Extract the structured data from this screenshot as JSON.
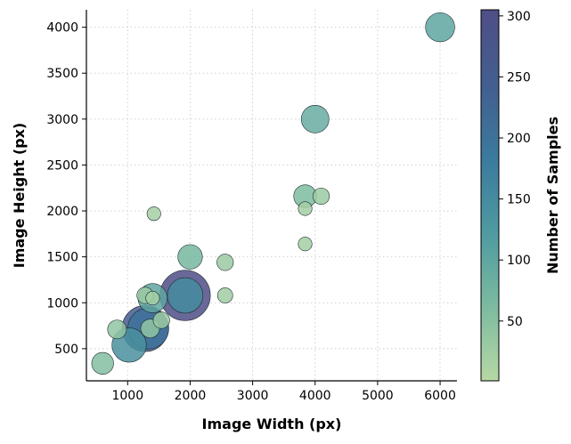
{
  "chart_data": {
    "type": "scatter",
    "title": "",
    "xlabel": "Image Width (px)",
    "ylabel": "Image Height (px)",
    "xlim": [
      340,
      6270
    ],
    "ylim": [
      150,
      4190
    ],
    "xticks": [
      1000,
      2000,
      3000,
      4000,
      5000,
      6000
    ],
    "yticks": [
      500,
      1000,
      1500,
      2000,
      2500,
      3000,
      3500,
      4000
    ],
    "grid": true,
    "colorbar": {
      "label": "Number of Samples",
      "range": [
        1,
        305
      ],
      "ticks": [
        50,
        100,
        150,
        200,
        250,
        300
      ],
      "colormap": [
        "#b7d8a5",
        "#7cbba0",
        "#4e9aa0",
        "#3b7a9e",
        "#435e90",
        "#4f4e86"
      ]
    },
    "points": [
      {
        "x": 6000,
        "y": 4000,
        "count": 100
      },
      {
        "x": 4000,
        "y": 3000,
        "count": 90
      },
      {
        "x": 3840,
        "y": 2160,
        "count": 60
      },
      {
        "x": 4096,
        "y": 2160,
        "count": 30
      },
      {
        "x": 3840,
        "y": 2025,
        "count": 20
      },
      {
        "x": 3840,
        "y": 1640,
        "count": 20
      },
      {
        "x": 1420,
        "y": 1970,
        "count": 20
      },
      {
        "x": 2000,
        "y": 1500,
        "count": 70
      },
      {
        "x": 2560,
        "y": 1440,
        "count": 30
      },
      {
        "x": 2560,
        "y": 1080,
        "count": 25
      },
      {
        "x": 1920,
        "y": 1080,
        "count": 305
      },
      {
        "x": 1920,
        "y": 1080,
        "count": 150
      },
      {
        "x": 1400,
        "y": 1050,
        "count": 100
      },
      {
        "x": 1280,
        "y": 1080,
        "count": 30
      },
      {
        "x": 1400,
        "y": 1050,
        "count": 20
      },
      {
        "x": 1280,
        "y": 720,
        "count": 255
      },
      {
        "x": 1330,
        "y": 720,
        "count": 200
      },
      {
        "x": 1360,
        "y": 720,
        "count": 40
      },
      {
        "x": 1540,
        "y": 810,
        "count": 30
      },
      {
        "x": 1024,
        "y": 540,
        "count": 140
      },
      {
        "x": 830,
        "y": 710,
        "count": 40
      },
      {
        "x": 600,
        "y": 340,
        "count": 55
      }
    ]
  }
}
